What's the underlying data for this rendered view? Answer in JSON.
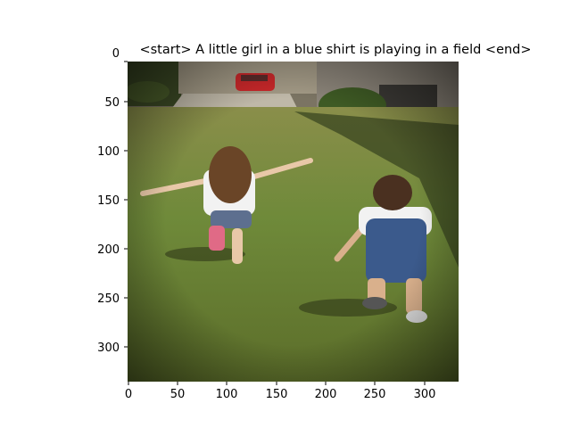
{
  "figure": {
    "caption": "<start> A little girl in a blue shirt is playing in a field <end>",
    "x_ticks": [
      "0",
      "50",
      "100",
      "150",
      "200",
      "250",
      "300"
    ],
    "y_ticks": [
      "0",
      "50",
      "100",
      "150",
      "200",
      "250",
      "300"
    ],
    "photo_icon": "photo-of-two-children-in-yard",
    "colors": {
      "grass": "#6f8a3a",
      "grass_dark": "#4a5a23",
      "shadow": "#2e3718",
      "driveway": "#bfb8a8",
      "house": "#8b8479",
      "car": "#c9282a",
      "girl_shirt": "#f2f2f2",
      "girl_hair": "#6a4527",
      "boy_overalls": "#3b5a8c"
    }
  }
}
